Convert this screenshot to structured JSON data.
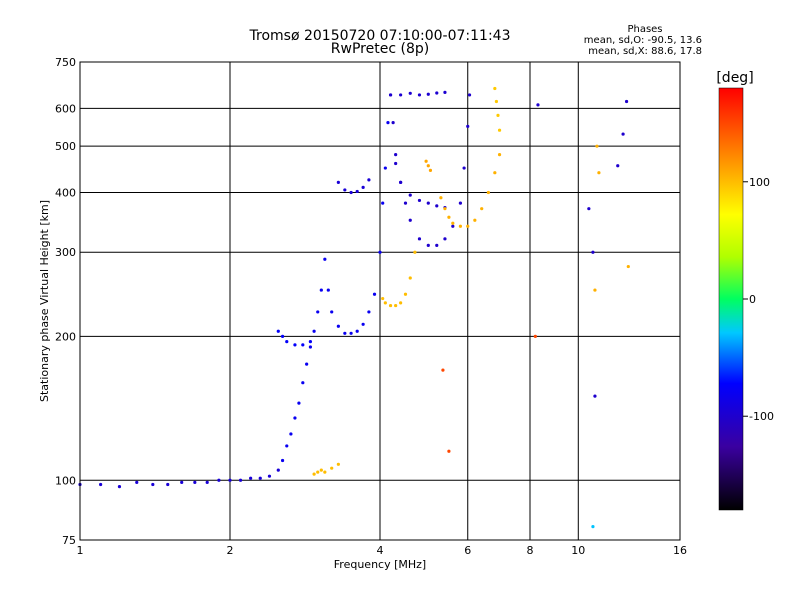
{
  "chart_data": {
    "type": "scatter",
    "title": "Tromsø 20150720 07:10:00-07:11:43",
    "subtitle": "RwPretec (8p)",
    "xlabel": "Frequency [MHz]",
    "ylabel": "Stationary phase Virtual Height [km]",
    "x_scale": "log",
    "y_scale": "log",
    "xlim": [
      1,
      16
    ],
    "ylim": [
      75,
      750
    ],
    "x_ticks": [
      "1",
      "2",
      "4",
      "6",
      "8",
      "10",
      "16"
    ],
    "y_ticks": [
      "75",
      "100",
      "200",
      "300",
      "400",
      "500",
      "600",
      "750"
    ],
    "grid": true,
    "phases_heading": "Phases",
    "phase_stats": [
      "mean, sd,O: -90.5, 13.6",
      "mean, sd,X:  88.6, 17.8"
    ],
    "colorbar": {
      "label": "[deg]",
      "range": [
        -180,
        180
      ],
      "ticks": [
        "100",
        "0",
        "-100"
      ],
      "tick_values": [
        100,
        0,
        -100
      ]
    },
    "traces": [
      {
        "phase": -95,
        "points": [
          [
            1.0,
            98
          ],
          [
            1.1,
            98
          ],
          [
            1.2,
            97
          ],
          [
            1.3,
            99
          ],
          [
            1.4,
            98
          ],
          [
            1.5,
            98
          ],
          [
            1.6,
            99
          ],
          [
            1.7,
            99
          ],
          [
            1.8,
            99
          ],
          [
            1.9,
            100
          ],
          [
            2.0,
            100
          ],
          [
            2.1,
            100
          ],
          [
            2.2,
            101
          ],
          [
            2.3,
            101
          ],
          [
            2.4,
            102
          ],
          [
            2.5,
            105
          ]
        ]
      },
      {
        "phase": -80,
        "points": [
          [
            2.55,
            110
          ],
          [
            2.6,
            118
          ],
          [
            2.65,
            125
          ],
          [
            2.7,
            135
          ],
          [
            2.75,
            145
          ],
          [
            2.8,
            160
          ],
          [
            2.85,
            175
          ],
          [
            2.9,
            190
          ],
          [
            2.95,
            205
          ],
          [
            3.0,
            225
          ],
          [
            3.05,
            250
          ],
          [
            3.1,
            290
          ],
          [
            3.15,
            250
          ],
          [
            3.2,
            225
          ],
          [
            3.3,
            210
          ],
          [
            3.4,
            203
          ],
          [
            3.5,
            203
          ],
          [
            3.6,
            205
          ],
          [
            3.7,
            212
          ],
          [
            3.8,
            225
          ],
          [
            3.9,
            245
          ],
          [
            4.0,
            300
          ],
          [
            4.05,
            380
          ],
          [
            4.1,
            450
          ],
          [
            4.15,
            560
          ],
          [
            4.2,
            640
          ]
        ]
      },
      {
        "phase": -75,
        "points": [
          [
            2.5,
            205
          ],
          [
            2.55,
            200
          ],
          [
            2.6,
            195
          ],
          [
            2.7,
            192
          ],
          [
            2.8,
            192
          ],
          [
            2.9,
            195
          ]
        ]
      },
      {
        "phase": -95,
        "points": [
          [
            3.3,
            420
          ],
          [
            3.4,
            405
          ],
          [
            3.5,
            400
          ],
          [
            3.6,
            402
          ],
          [
            3.7,
            410
          ],
          [
            3.8,
            425
          ]
        ]
      },
      {
        "phase": -100,
        "points": [
          [
            4.2,
            640
          ],
          [
            4.25,
            560
          ],
          [
            4.3,
            480
          ],
          [
            4.4,
            420
          ],
          [
            4.5,
            380
          ],
          [
            4.6,
            350
          ],
          [
            4.8,
            320
          ],
          [
            5.0,
            310
          ],
          [
            5.2,
            310
          ],
          [
            5.4,
            320
          ],
          [
            5.6,
            340
          ],
          [
            5.8,
            380
          ],
          [
            5.9,
            450
          ],
          [
            6.0,
            550
          ],
          [
            6.05,
            640
          ]
        ]
      },
      {
        "phase": -98,
        "points": [
          [
            4.4,
            640
          ],
          [
            4.6,
            645
          ],
          [
            4.8,
            640
          ],
          [
            5.0,
            642
          ],
          [
            5.2,
            646
          ],
          [
            5.4,
            648
          ]
        ]
      },
      {
        "phase": -100,
        "points": [
          [
            4.3,
            460
          ],
          [
            4.4,
            420
          ],
          [
            4.6,
            395
          ],
          [
            4.8,
            385
          ],
          [
            5.0,
            380
          ],
          [
            5.2,
            375
          ],
          [
            5.4,
            372
          ]
        ]
      },
      {
        "phase": 100,
        "points": [
          [
            4.05,
            240
          ],
          [
            4.1,
            235
          ],
          [
            4.2,
            232
          ],
          [
            4.3,
            232
          ],
          [
            4.4,
            235
          ],
          [
            4.5,
            245
          ],
          [
            4.6,
            265
          ],
          [
            4.7,
            300
          ]
        ]
      },
      {
        "phase": 105,
        "points": [
          [
            5.3,
            390
          ],
          [
            5.4,
            370
          ],
          [
            5.5,
            355
          ],
          [
            5.6,
            345
          ],
          [
            5.8,
            340
          ],
          [
            6.0,
            340
          ],
          [
            6.2,
            350
          ],
          [
            6.4,
            370
          ],
          [
            6.6,
            400
          ],
          [
            6.8,
            440
          ],
          [
            6.95,
            480
          ]
        ]
      },
      {
        "phase": 95,
        "points": [
          [
            6.8,
            660
          ],
          [
            6.85,
            620
          ],
          [
            6.9,
            580
          ],
          [
            6.95,
            540
          ]
        ]
      },
      {
        "phase": 100,
        "points": [
          [
            2.95,
            103
          ],
          [
            3.0,
            104
          ],
          [
            3.05,
            105
          ],
          [
            3.1,
            104
          ],
          [
            3.2,
            106
          ],
          [
            3.3,
            108
          ]
        ]
      },
      {
        "phase": 110,
        "points": [
          [
            4.95,
            465
          ],
          [
            5.0,
            455
          ],
          [
            5.05,
            445
          ]
        ]
      },
      {
        "phase": -100,
        "points": [
          [
            8.3,
            610
          ],
          [
            10.7,
            300
          ],
          [
            10.8,
            150
          ],
          [
            12.5,
            620
          ],
          [
            12.3,
            530
          ],
          [
            12.0,
            455
          ],
          [
            10.5,
            370
          ]
        ]
      },
      {
        "phase": 105,
        "points": [
          [
            10.9,
            500
          ],
          [
            11.0,
            440
          ],
          [
            12.6,
            280
          ],
          [
            10.8,
            250
          ]
        ]
      },
      {
        "phase": -30,
        "points": [
          [
            10.7,
            80
          ]
        ]
      },
      {
        "phase": 150,
        "points": [
          [
            8.2,
            200
          ],
          [
            5.35,
            170
          ],
          [
            5.5,
            115
          ]
        ]
      }
    ]
  }
}
